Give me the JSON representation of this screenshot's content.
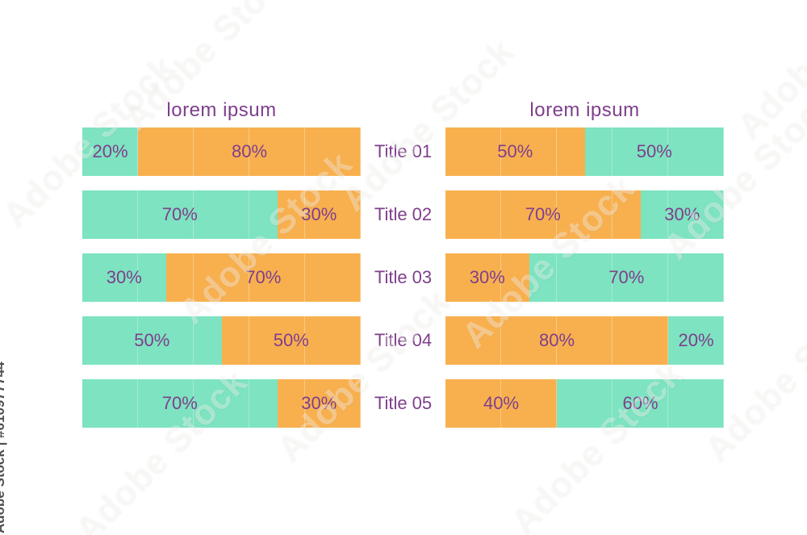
{
  "palette": {
    "teal": "#7de3c0",
    "orange": "#f8b04f",
    "text_purple": "#7e3f8c",
    "background": "#ffffff"
  },
  "left_chart": {
    "title": "lorem ipsum",
    "rows": [
      {
        "segments": [
          {
            "color": "teal",
            "value": 20,
            "label": "20%"
          },
          {
            "color": "orange",
            "value": 80,
            "label": "80%"
          }
        ]
      },
      {
        "segments": [
          {
            "color": "teal",
            "value": 70,
            "label": "70%"
          },
          {
            "color": "orange",
            "value": 30,
            "label": "30%"
          }
        ]
      },
      {
        "segments": [
          {
            "color": "teal",
            "value": 30,
            "label": "30%"
          },
          {
            "color": "orange",
            "value": 70,
            "label": "70%"
          }
        ]
      },
      {
        "segments": [
          {
            "color": "teal",
            "value": 50,
            "label": "50%"
          },
          {
            "color": "orange",
            "value": 50,
            "label": "50%"
          }
        ]
      },
      {
        "segments": [
          {
            "color": "teal",
            "value": 70,
            "label": "70%"
          },
          {
            "color": "orange",
            "value": 30,
            "label": "30%"
          }
        ]
      }
    ]
  },
  "right_chart": {
    "title": "lorem ipsum",
    "rows": [
      {
        "segments": [
          {
            "color": "orange",
            "value": 50,
            "label": "50%"
          },
          {
            "color": "teal",
            "value": 50,
            "label": "50%"
          }
        ]
      },
      {
        "segments": [
          {
            "color": "orange",
            "value": 70,
            "label": "70%"
          },
          {
            "color": "teal",
            "value": 30,
            "label": "30%"
          }
        ]
      },
      {
        "segments": [
          {
            "color": "orange",
            "value": 30,
            "label": "30%"
          },
          {
            "color": "teal",
            "value": 70,
            "label": "70%"
          }
        ]
      },
      {
        "segments": [
          {
            "color": "orange",
            "value": 80,
            "label": "80%"
          },
          {
            "color": "teal",
            "value": 20,
            "label": "20%"
          }
        ]
      },
      {
        "segments": [
          {
            "color": "orange",
            "value": 40,
            "label": "40%"
          },
          {
            "color": "teal",
            "value": 60,
            "label": "60%"
          }
        ]
      }
    ]
  },
  "row_titles": [
    "Title 01",
    "Title 02",
    "Title 03",
    "Title 04",
    "Title 05"
  ],
  "watermark": {
    "tile_label": "Adobe Stock",
    "vertical_label": "Adobe Stock | #610977744"
  },
  "chart_data": [
    {
      "type": "bar",
      "orientation": "horizontal",
      "stacked": true,
      "title": "lorem ipsum",
      "categories": [
        "Title 01",
        "Title 02",
        "Title 03",
        "Title 04",
        "Title 05"
      ],
      "series": [
        {
          "name": "segment-teal",
          "color": "#7de3c0",
          "values": [
            20,
            70,
            30,
            50,
            70
          ]
        },
        {
          "name": "segment-orange",
          "color": "#f8b04f",
          "values": [
            80,
            30,
            70,
            50,
            30
          ]
        }
      ],
      "value_format": "percent",
      "xlim": [
        0,
        100
      ],
      "grid": "subtle 20% vertical dividers",
      "legend": false,
      "data_labels": true
    },
    {
      "type": "bar",
      "orientation": "horizontal",
      "stacked": true,
      "title": "lorem ipsum",
      "categories": [
        "Title 01",
        "Title 02",
        "Title 03",
        "Title 04",
        "Title 05"
      ],
      "series": [
        {
          "name": "segment-orange",
          "color": "#f8b04f",
          "values": [
            50,
            70,
            30,
            80,
            40
          ]
        },
        {
          "name": "segment-teal",
          "color": "#7de3c0",
          "values": [
            50,
            30,
            70,
            20,
            60
          ]
        }
      ],
      "value_format": "percent",
      "xlim": [
        0,
        100
      ],
      "grid": "subtle 20% vertical dividers",
      "legend": false,
      "data_labels": true
    }
  ]
}
